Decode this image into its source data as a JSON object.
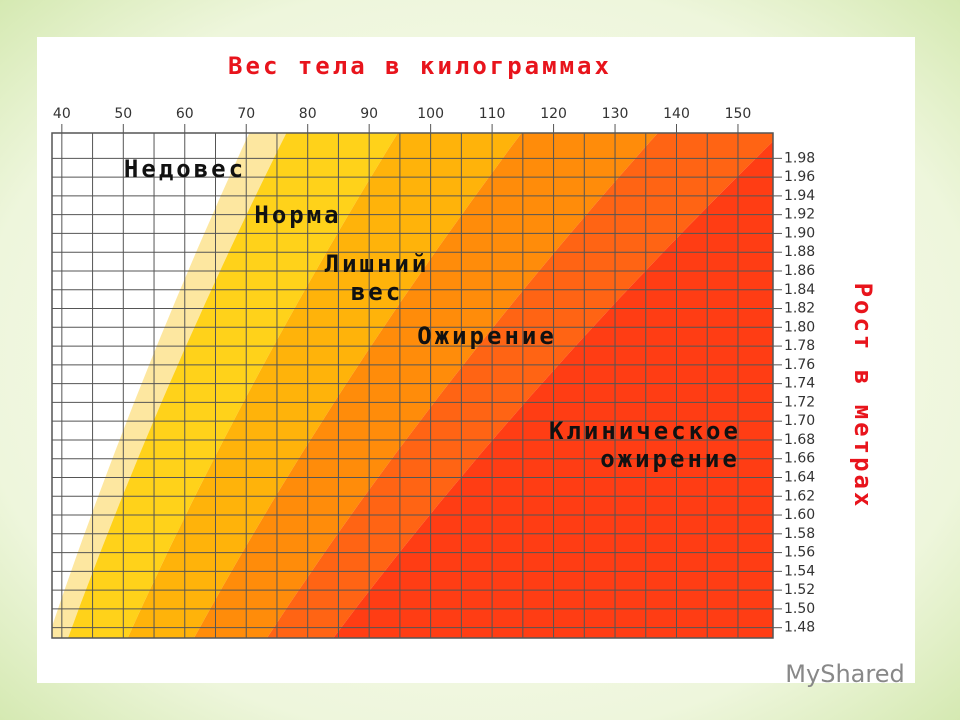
{
  "chart_data": {
    "type": "area",
    "title": "Вес тела в килограммах",
    "y_label": "Рост в метрах",
    "xlim": [
      38.4,
      155.7
    ],
    "xticks": [
      40,
      50,
      60,
      70,
      80,
      90,
      100,
      110,
      120,
      130,
      140,
      150
    ],
    "ylim": [
      1.469,
      2.007
    ],
    "yticks": [
      1.48,
      {
        "value": 1.5,
        "label": "1.50"
      },
      1.52,
      1.54,
      1.56,
      1.58,
      {
        "value": 1.6,
        "label": "1.60"
      },
      1.62,
      1.64,
      1.66,
      1.68,
      {
        "value": 1.7,
        "label": "1.70"
      },
      1.72,
      1.74,
      1.76,
      1.78,
      {
        "value": 1.8,
        "label": "1.80"
      },
      1.82,
      1.84,
      1.86,
      1.88,
      {
        "value": 1.9,
        "label": "1.90"
      },
      1.92,
      1.94,
      1.96,
      1.98
    ],
    "grid": true,
    "boundaries": [
      17.5,
      19,
      23.5,
      28.5,
      34,
      39
    ],
    "colors": [
      "#ffffff",
      "#fde7a0",
      "#ffd21a",
      "#ffb30a",
      "#ff8c0a",
      "#ff6414",
      "#ff3d14"
    ],
    "annotations": [
      [
        "Недовес"
      ],
      [
        "Норма"
      ],
      [
        "Лишний",
        "вес"
      ],
      [
        "Ожирение"
      ],
      [
        "Клиническое",
        "ожирение"
      ]
    ],
    "watermark": "MyShared"
  }
}
